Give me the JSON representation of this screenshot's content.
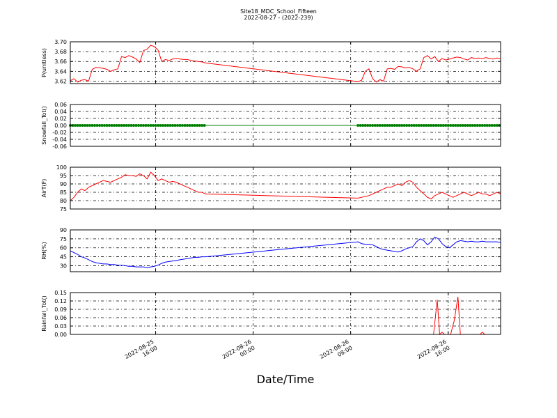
{
  "title_line1": "Site18_MDC_School_Fifteen",
  "title_line2": "2022-08-27 - (2022-239)",
  "xlabel": "Date/Time",
  "x_ticks": [
    {
      "hour": 16,
      "label": [
        "2022-08-25",
        "16:00"
      ]
    },
    {
      "hour": 24,
      "label": [
        "2022-08-26",
        "00:00"
      ]
    },
    {
      "hour": 32,
      "label": [
        "2022-08-26",
        "08:00"
      ]
    },
    {
      "hour": 40,
      "label": [
        "2022-08-26",
        "16:00"
      ]
    }
  ],
  "x_range_hours": [
    9.0,
    44.3
  ],
  "chart_data": [
    {
      "type": "line",
      "ylabel": "P(unitless)",
      "ylim": [
        3.615,
        3.7
      ],
      "yticks": [
        3.62,
        3.64,
        3.66,
        3.68,
        3.7
      ],
      "ytick_labels": [
        "3.62",
        "3.64",
        "3.66",
        "3.68",
        "3.70"
      ],
      "color": "#ff0000",
      "markers": false,
      "grid": true,
      "x_hours": [
        9.0,
        9.3,
        9.6,
        9.9,
        10.2,
        10.5,
        10.8,
        11.1,
        11.4,
        11.7,
        12.0,
        12.3,
        12.6,
        12.9,
        13.2,
        13.5,
        13.8,
        14.1,
        14.4,
        14.7,
        15.0,
        15.3,
        15.6,
        15.9,
        16.2,
        16.5,
        16.8,
        17.1,
        17.4,
        17.7,
        18.0,
        18.3,
        18.6,
        18.9,
        19.2,
        19.5,
        19.8,
        20.1,
        32.6,
        32.9,
        33.2,
        33.5,
        33.8,
        34.1,
        34.4,
        34.7,
        35.0,
        35.3,
        35.6,
        35.9,
        36.2,
        36.5,
        36.8,
        37.1,
        37.4,
        37.7,
        38.0,
        38.3,
        38.6,
        38.9,
        39.2,
        39.5,
        39.8,
        40.1,
        40.4,
        40.7,
        41.0,
        41.3,
        41.6,
        41.9,
        42.2,
        42.5,
        42.8,
        43.1,
        43.4,
        43.7,
        44.0,
        44.3
      ],
      "y": [
        3.621,
        3.625,
        3.618,
        3.622,
        3.623,
        3.62,
        3.644,
        3.648,
        3.647,
        3.646,
        3.644,
        3.64,
        3.643,
        3.645,
        3.67,
        3.668,
        3.672,
        3.669,
        3.665,
        3.658,
        3.682,
        3.685,
        3.693,
        3.69,
        3.683,
        3.66,
        3.664,
        3.662,
        3.665,
        3.666,
        3.665,
        3.664,
        3.664,
        3.662,
        3.661,
        3.66,
        3.659,
        3.657,
        3.619,
        3.622,
        3.64,
        3.645,
        3.625,
        3.618,
        3.623,
        3.62,
        3.645,
        3.646,
        3.644,
        3.65,
        3.649,
        3.647,
        3.648,
        3.645,
        3.64,
        3.645,
        3.668,
        3.672,
        3.665,
        3.67,
        3.66,
        3.666,
        3.663,
        3.665,
        3.667,
        3.669,
        3.668,
        3.665,
        3.663,
        3.668,
        3.666,
        3.667,
        3.666,
        3.668,
        3.666,
        3.665,
        3.667,
        3.666
      ],
      "break_after_index": 37
    },
    {
      "type": "line",
      "ylabel": "Snowfall_Tot()",
      "ylim": [
        -0.06,
        0.06
      ],
      "yticks": [
        -0.06,
        -0.04,
        -0.02,
        0.0,
        0.02,
        0.04,
        0.06
      ],
      "ytick_labels": [
        "-0.06",
        "-0.04",
        "-0.02",
        "0.00",
        "0.02",
        "0.04",
        "0.06"
      ],
      "color": "#008000",
      "markers": true,
      "grid": true,
      "x_hours": [
        9.0,
        20.1,
        32.6,
        44.3
      ],
      "y": [
        0.0,
        0.0,
        0.0,
        0.0
      ],
      "marker_ranges_hours": [
        [
          9.0,
          20.1
        ],
        [
          32.6,
          44.3
        ]
      ]
    },
    {
      "type": "line",
      "ylabel": "AirT(F)",
      "ylim": [
        75,
        100
      ],
      "yticks": [
        75,
        80,
        85,
        90,
        95,
        100
      ],
      "ytick_labels": [
        "75",
        "80",
        "85",
        "90",
        "95",
        "100"
      ],
      "color": "#ff0000",
      "markers": false,
      "grid": true,
      "x_hours": [
        9.0,
        9.3,
        9.6,
        9.9,
        10.2,
        10.5,
        10.8,
        11.1,
        11.4,
        11.7,
        12.0,
        12.3,
        12.6,
        12.9,
        13.2,
        13.5,
        13.8,
        14.1,
        14.4,
        14.7,
        15.0,
        15.3,
        15.6,
        15.9,
        16.2,
        16.5,
        16.8,
        17.1,
        17.4,
        17.7,
        18.0,
        18.3,
        18.6,
        18.9,
        19.2,
        19.5,
        19.8,
        20.1,
        32.6,
        32.9,
        33.2,
        33.5,
        33.8,
        34.1,
        34.4,
        34.7,
        35.0,
        35.3,
        35.6,
        35.9,
        36.2,
        36.5,
        36.8,
        37.1,
        37.4,
        37.7,
        38.0,
        38.3,
        38.6,
        38.9,
        39.2,
        39.5,
        39.8,
        40.1,
        40.4,
        40.7,
        41.0,
        41.3,
        41.6,
        41.9,
        42.2,
        42.5,
        42.8,
        43.1,
        43.4,
        43.7,
        44.0,
        44.3
      ],
      "y": [
        80,
        82,
        85,
        87,
        86,
        88,
        89,
        90,
        91,
        92,
        91.5,
        91,
        92,
        93,
        94,
        95.5,
        95,
        95,
        94.5,
        96,
        95,
        93,
        97,
        95,
        92,
        93,
        92,
        91,
        91.5,
        91,
        90,
        89,
        88,
        87,
        86,
        85,
        85,
        84,
        81.5,
        82,
        82.5,
        83,
        84,
        85,
        86,
        87,
        88,
        88,
        89,
        90,
        89,
        91,
        92,
        91,
        88,
        86,
        84,
        82,
        81,
        83,
        84,
        85,
        84,
        83,
        82,
        83,
        84,
        85,
        84,
        83,
        84,
        85,
        84,
        84,
        83,
        84,
        85,
        84
      ],
      "break_after_index": 37
    },
    {
      "type": "line",
      "ylabel": "RH(%)",
      "ylim": [
        20,
        90
      ],
      "yticks": [
        30,
        45,
        60,
        75,
        90
      ],
      "ytick_labels": [
        "30",
        "45",
        "60",
        "75",
        "90"
      ],
      "color": "#0000ff",
      "markers": false,
      "grid": true,
      "x_hours": [
        9.0,
        9.3,
        9.6,
        9.9,
        10.2,
        10.5,
        10.8,
        11.1,
        11.4,
        11.7,
        12.0,
        12.3,
        12.6,
        12.9,
        13.2,
        13.5,
        13.8,
        14.1,
        14.4,
        14.7,
        15.0,
        15.3,
        15.6,
        15.9,
        16.2,
        16.5,
        16.8,
        17.1,
        17.4,
        17.7,
        18.0,
        18.3,
        18.6,
        18.9,
        19.2,
        19.5,
        19.8,
        20.1,
        32.6,
        32.9,
        33.2,
        33.5,
        33.8,
        34.1,
        34.4,
        34.7,
        35.0,
        35.3,
        35.6,
        35.9,
        36.2,
        36.5,
        36.8,
        37.1,
        37.4,
        37.7,
        38.0,
        38.3,
        38.6,
        38.9,
        39.2,
        39.5,
        39.8,
        40.1,
        40.4,
        40.7,
        41.0,
        41.3,
        41.6,
        41.9,
        42.2,
        42.5,
        42.8,
        43.1,
        43.4,
        43.7,
        44.0,
        44.3
      ],
      "y": [
        55,
        52,
        49,
        45,
        43,
        40,
        37,
        35,
        34,
        33,
        33,
        32,
        32,
        31,
        31,
        30,
        29,
        29,
        28,
        28,
        28,
        27,
        28,
        29,
        31,
        34,
        36,
        37,
        38,
        39,
        40,
        41,
        42,
        43,
        44,
        44,
        45,
        45,
        70,
        67,
        66,
        66,
        65,
        62,
        59,
        57,
        56,
        55,
        54,
        53,
        55,
        58,
        60,
        62,
        70,
        75,
        72,
        65,
        70,
        78,
        75,
        67,
        62,
        60,
        65,
        70,
        72,
        71,
        70,
        71,
        70,
        70,
        71,
        70,
        70,
        70,
        70,
        69
      ]
    },
    {
      "type": "line",
      "ylabel": "Rainfall_Tot()",
      "ylim": [
        0.0,
        0.15
      ],
      "yticks": [
        0.0,
        0.03,
        0.06,
        0.09,
        0.12,
        0.15
      ],
      "ytick_labels": [
        "0.00",
        "0.03",
        "0.06",
        "0.09",
        "0.12",
        "0.15"
      ],
      "color": "#ff0000",
      "markers": false,
      "grid": true,
      "x_hours": [
        9.0,
        38.8,
        39.1,
        39.3,
        39.5,
        39.7,
        40.2,
        40.5,
        40.8,
        41.0,
        41.2,
        41.3,
        42.6,
        42.8,
        43.0,
        44.3
      ],
      "y": [
        0.0,
        0.0,
        0.125,
        0.0,
        0.008,
        0.0,
        0.0,
        0.05,
        0.135,
        0.0,
        0.0,
        0.0,
        0.0,
        0.008,
        0.0,
        0.0
      ]
    }
  ]
}
